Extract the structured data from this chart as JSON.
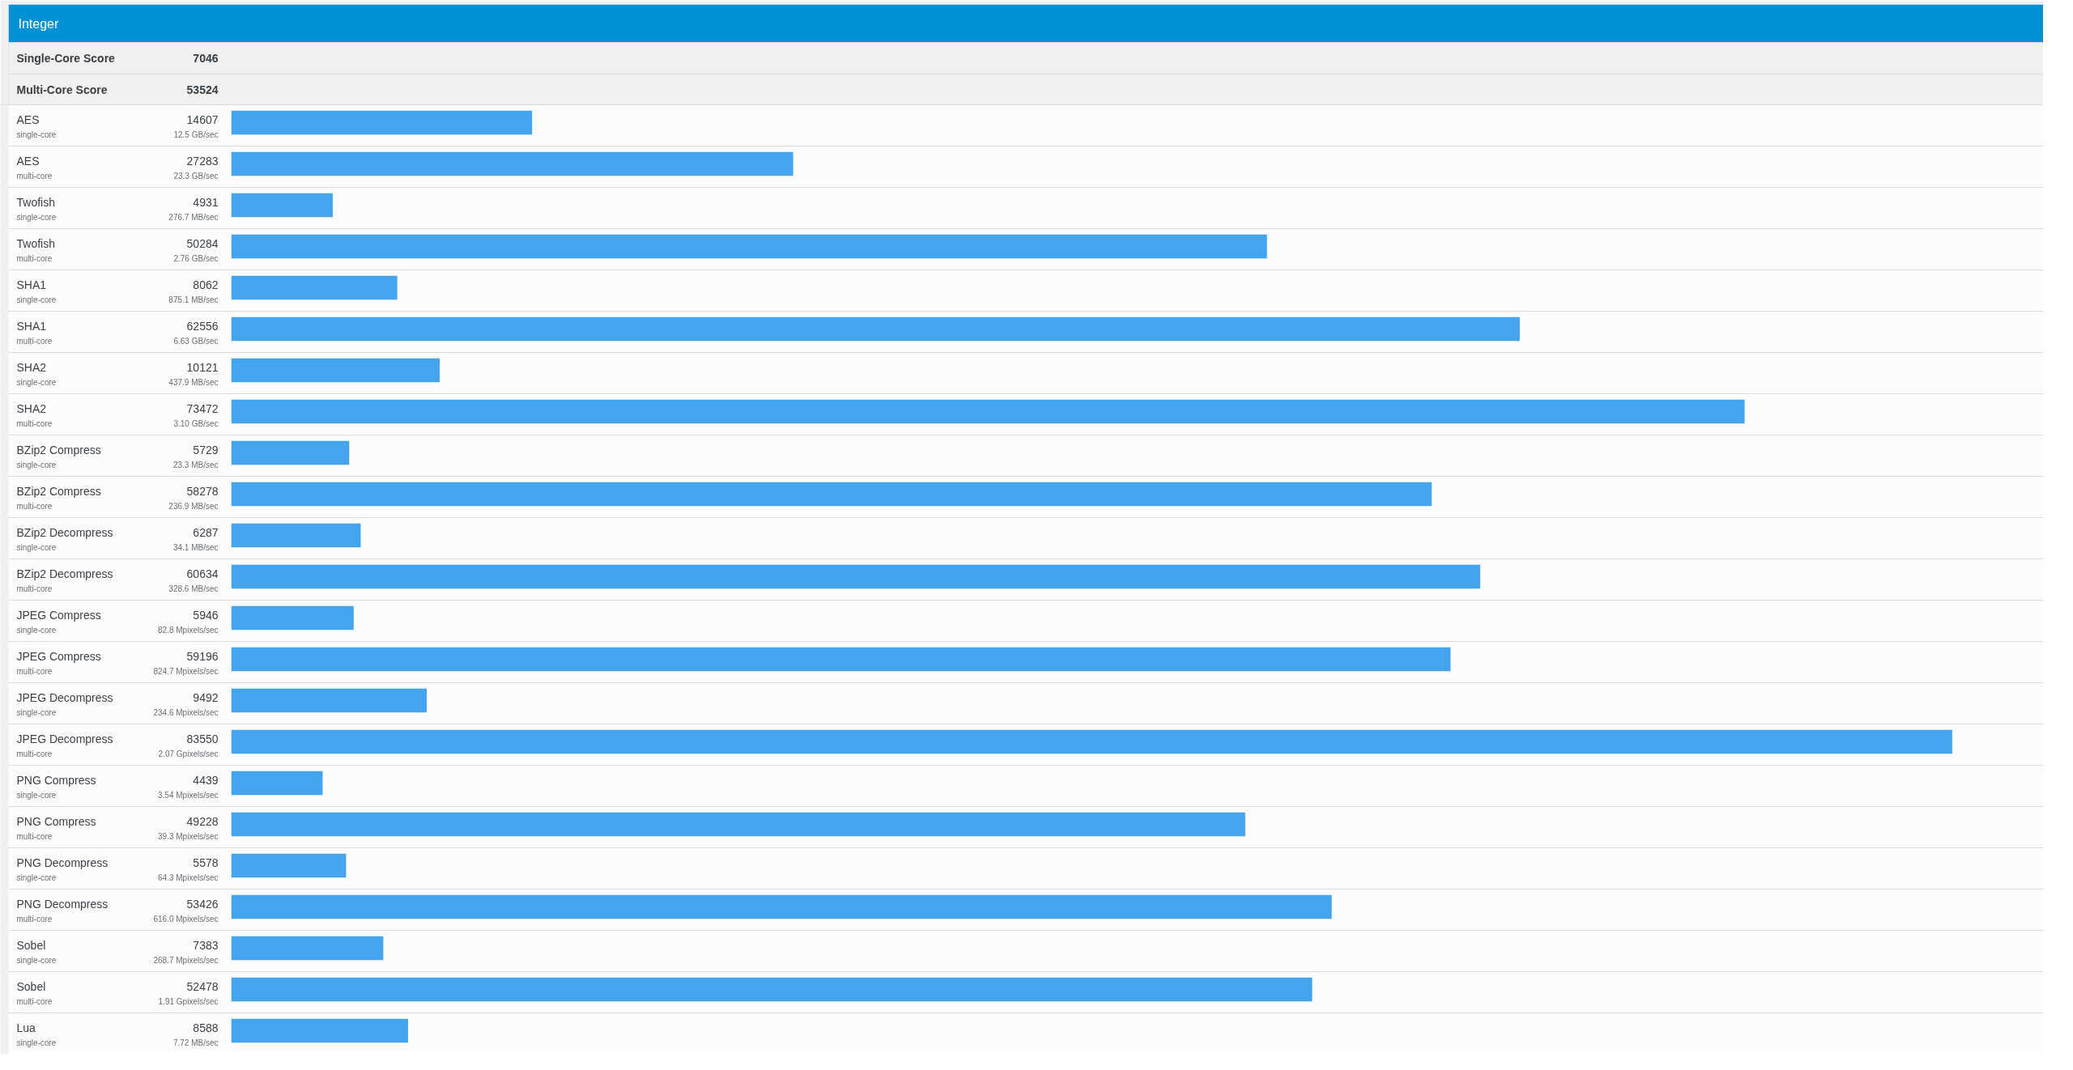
{
  "chart_data": {
    "type": "bar",
    "orientation": "horizontal",
    "title": "Integer",
    "categories": [
      "AES\nsingle-core",
      "AES\nmulti-core",
      "Twofish\nsingle-core",
      "Twofish\nmulti-core",
      "SHA1\nsingle-core",
      "SHA1\nmulti-core",
      "SHA2\nsingle-core",
      "SHA2\nmulti-core",
      "BZip2 Compress\nsingle-core",
      "BZip2 Compress\nmulti-core",
      "BZip2 Decompress\nsingle-core",
      "BZip2 Decompress\nmulti-core",
      "JPEG Compress\nsingle-core",
      "JPEG Compress\nmulti-core",
      "JPEG Decompress\nsingle-core",
      "JPEG Decompress\nmulti-core",
      "PNG Compress\nsingle-core",
      "PNG Compress\nmulti-core",
      "PNG Decompress\nsingle-core",
      "PNG Decompress\nmulti-core",
      "Sobel\nsingle-core",
      "Sobel\nmulti-core",
      "Lua\nsingle-core"
    ],
    "values": [
      14607,
      27283,
      4931,
      50284,
      8062,
      62556,
      10121,
      73472,
      5729,
      58278,
      6287,
      60634,
      5946,
      59196,
      9492,
      83550,
      4439,
      49228,
      5578,
      53426,
      7383,
      52478,
      8588
    ],
    "data_labels": true,
    "color": "#44a4ee",
    "tick_labels": "y",
    "annotations": [
      "Single-Core Score",
      "7046",
      "Multi-Core Score",
      "53524",
      "12.5 GB/sec",
      "23.3 GB/sec",
      "276.7 MB/sec",
      "2.76 GB/sec",
      "875.1 MB/sec",
      "6.63 GB/sec",
      "437.9 MB/sec",
      "3.10 GB/sec",
      "23.3 MB/sec",
      "236.9 MB/sec",
      "34.1 MB/sec",
      "328.6 MB/sec",
      "82.8 Mpixels/sec",
      "824.7 Mpixels/sec",
      "234.6 Mpixels/sec",
      "2.07 Gpixels/sec",
      "3.54 Mpixels/sec",
      "39.3 Mpixels/sec",
      "64.3 Mpixels/sec",
      "616.0 Mpixels/sec",
      "268.7 Mpixels/sec",
      "1.91 Gpixels/sec",
      "7.72 MB/sec"
    ]
  }
}
